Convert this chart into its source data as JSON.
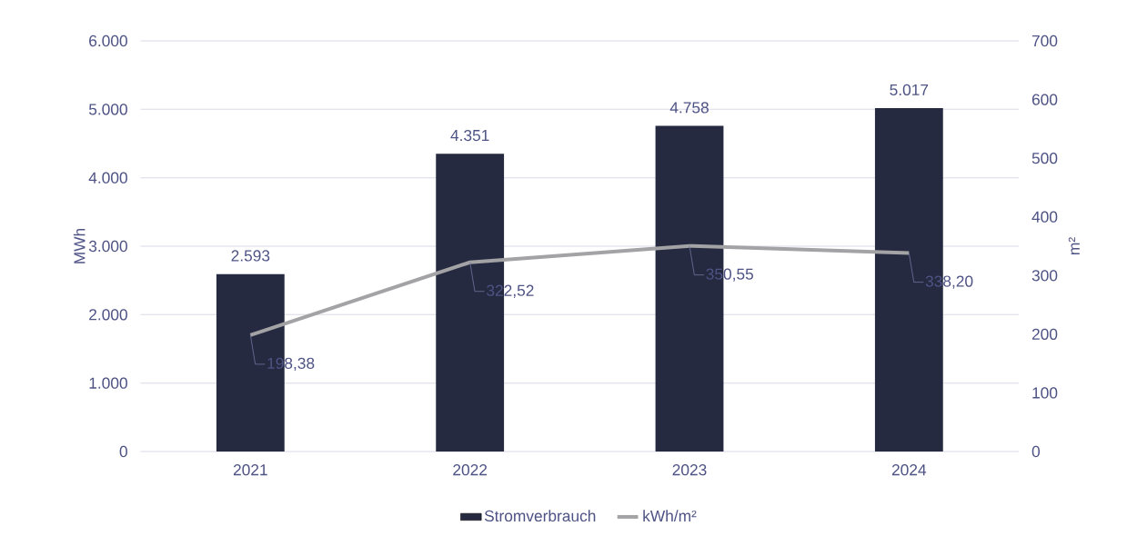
{
  "chart_data": {
    "type": "bar",
    "categories": [
      "2021",
      "2022",
      "2023",
      "2024"
    ],
    "series": [
      {
        "name": "Stromverbrauch",
        "color": "#252a40",
        "values": [
          2593,
          4351,
          4758,
          5017
        ],
        "value_labels": [
          "2.593",
          "4.351",
          "4.758",
          "5.017"
        ]
      },
      {
        "name": "kWh/m²",
        "type": "line",
        "axis": "y2",
        "color": "#a3a3a6",
        "values": [
          198.38,
          322.52,
          350.55,
          338.2
        ],
        "value_labels": [
          "198,38",
          "322,52",
          "350,55",
          "338,20"
        ]
      }
    ],
    "ylabel": "MWh",
    "y2label": "m²",
    "ylim": [
      0,
      6000
    ],
    "yticks": [
      {
        "value": 0,
        "label": "0"
      },
      {
        "value": 1000,
        "label": "1.000"
      },
      {
        "value": 2000,
        "label": "2.000"
      },
      {
        "value": 3000,
        "label": "3.000"
      },
      {
        "value": 4000,
        "label": "4.000"
      },
      {
        "value": 5000,
        "label": "5.000"
      },
      {
        "value": 6000,
        "label": "6.000"
      }
    ],
    "y2lim": [
      0,
      700
    ],
    "y2ticks": [
      0,
      100,
      200,
      300,
      400,
      500,
      600,
      700
    ],
    "grid": "y",
    "legend": "bottom",
    "marker": "none"
  }
}
